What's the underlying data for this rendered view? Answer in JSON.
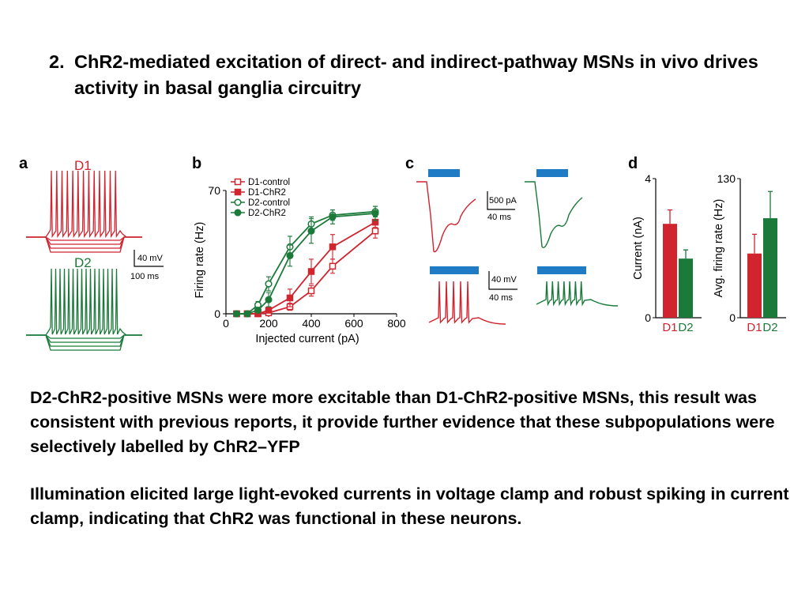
{
  "title": {
    "number": "2.",
    "text": "ChR2-mediated excitation of direct- and indirect-pathway MSNs in vivo drives activity in basal ganglia circuitry"
  },
  "figure": {
    "colors": {
      "d1": "#d0242f",
      "d2": "#1b7a3a",
      "light": "#1f7bc4"
    },
    "panel_a": {
      "letter": "a",
      "label_d1": "D1",
      "label_d2": "D2",
      "scale_v": "40 mV",
      "scale_t": "100 ms"
    },
    "panel_c": {
      "letter": "c",
      "scale_i": "500 pA",
      "scale_t1": "40 ms",
      "scale_v": "40 mV",
      "scale_t2": "40 ms"
    }
  },
  "chart_data": [
    {
      "panel": "b",
      "type": "line",
      "ylabel": "Firing rate (Hz)",
      "xlabel": "Injected current (pA)",
      "xlim": [
        0,
        800
      ],
      "ylim": [
        0,
        70
      ],
      "xticks": [
        "0",
        "200",
        "400",
        "600",
        "800"
      ],
      "yticks": [
        "0",
        "70"
      ],
      "legend_position": "top-left",
      "x": [
        50,
        100,
        150,
        200,
        300,
        400,
        500,
        700
      ],
      "series": [
        {
          "name": "D1-control",
          "color": "#d0242f",
          "marker": "open-square",
          "values": [
            0,
            0,
            0,
            0.5,
            4,
            13,
            27,
            47
          ],
          "err": [
            0,
            0,
            0,
            0.5,
            2,
            3,
            4,
            4
          ]
        },
        {
          "name": "D1-ChR2",
          "color": "#d0242f",
          "marker": "filled-square",
          "values": [
            0,
            0,
            0,
            2,
            9,
            24,
            38,
            52
          ],
          "err": [
            0,
            0,
            0,
            1,
            5,
            7,
            7,
            3
          ]
        },
        {
          "name": "D2-control",
          "color": "#1b7a3a",
          "marker": "open-circle",
          "values": [
            0,
            0,
            5,
            17,
            38,
            51,
            56,
            58
          ],
          "err": [
            0,
            0,
            2,
            4,
            6,
            4,
            3,
            3
          ]
        },
        {
          "name": "D2-ChR2",
          "color": "#1b7a3a",
          "marker": "filled-circle",
          "values": [
            0,
            0,
            2,
            8,
            33,
            47,
            55,
            57
          ],
          "err": [
            0,
            0,
            1,
            4,
            6,
            7,
            4,
            4
          ]
        }
      ]
    },
    {
      "panel": "d",
      "type": "bar",
      "ylabel": "Current (nA)",
      "ylim": [
        0,
        4
      ],
      "yticks": [
        "0",
        "4"
      ],
      "categories": [
        "D1",
        "D2"
      ],
      "colors": [
        "#d0242f",
        "#1b7a3a"
      ],
      "values": [
        2.7,
        1.7
      ],
      "err": [
        0.4,
        0.25
      ]
    },
    {
      "panel": "d",
      "type": "bar",
      "ylabel": "Avg. firing rate (Hz)",
      "ylim": [
        0,
        130
      ],
      "yticks": [
        "0",
        "130"
      ],
      "categories": [
        "D1",
        "D2"
      ],
      "colors": [
        "#d0242f",
        "#1b7a3a"
      ],
      "values": [
        60,
        93
      ],
      "err": [
        18,
        25
      ]
    }
  ],
  "paragraphs": {
    "p1": "D2-ChR2-positive MSNs were more excitable than D1-ChR2-positive MSNs, this result was consistent with previous reports, it provide further evidence that these subpopulations were selectively labelled by ChR2–YFP",
    "p2": "Illumination elicited large light-evoked currents in voltage clamp and robust spiking in current clamp, indicating that ChR2 was functional in these neurons."
  }
}
